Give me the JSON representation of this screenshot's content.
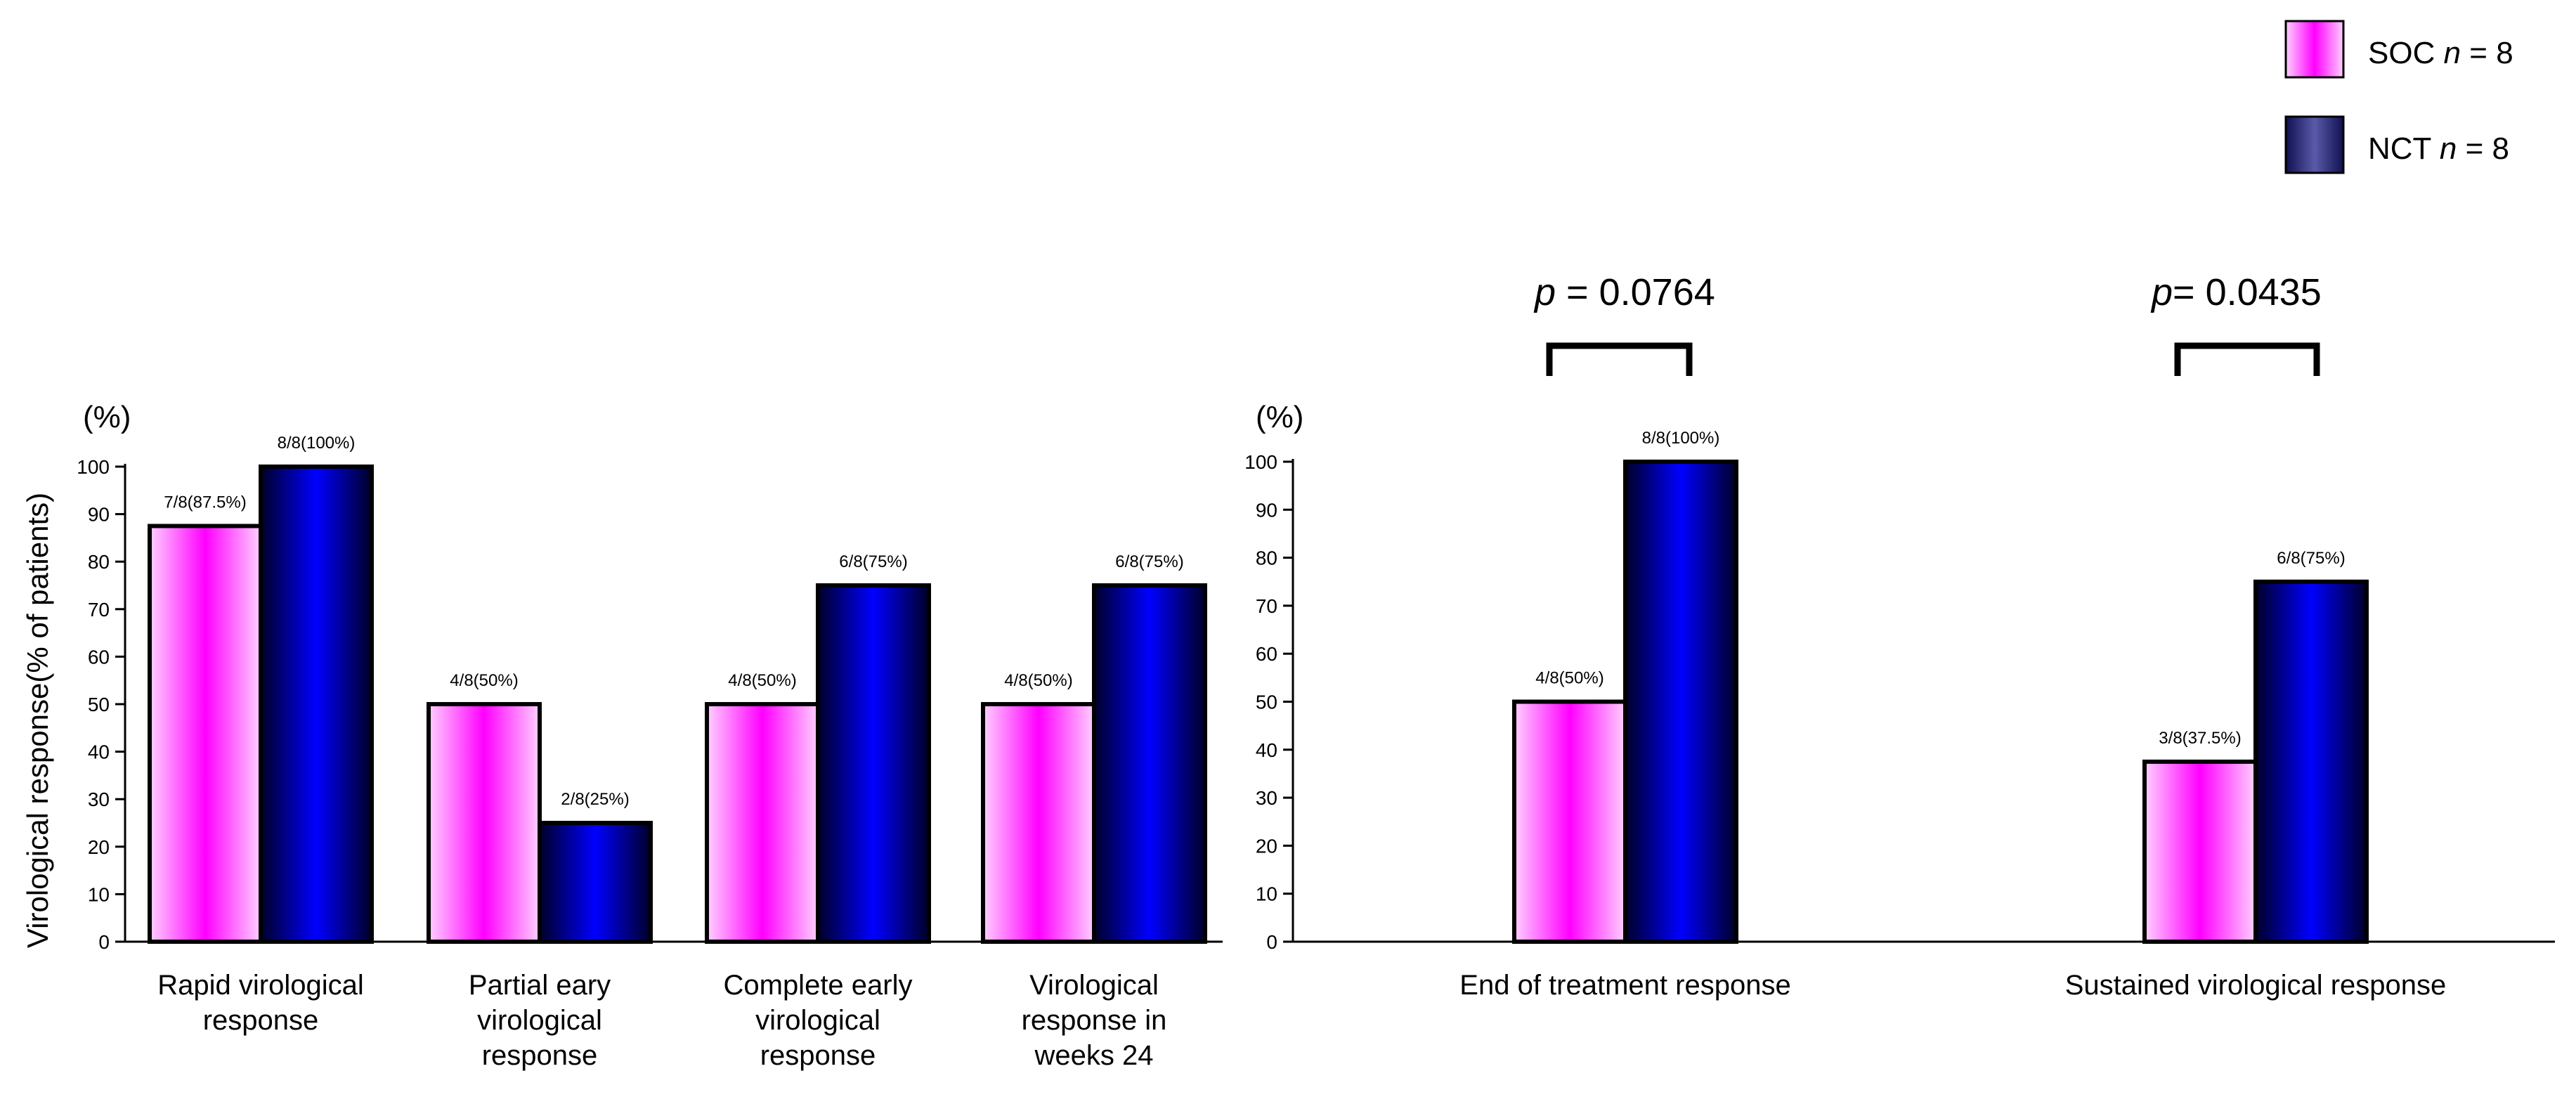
{
  "chart_data": [
    {
      "type": "bar",
      "ylabel": "Virological response(% of patients)",
      "unit_label": "(%)",
      "ylim": [
        0,
        100
      ],
      "yticks": [
        "0",
        "10",
        "20",
        "30",
        "40",
        "50",
        "60",
        "70",
        "80",
        "90",
        "100"
      ],
      "categories": [
        [
          "Rapid virological",
          "response"
        ],
        [
          "Partial eary",
          "virological",
          "response"
        ],
        [
          "Complete early",
          "virological",
          "response"
        ],
        [
          "Virological",
          "response  in",
          "weeks 24"
        ]
      ],
      "series": [
        {
          "name": "SOC n = 8",
          "values": [
            87.5,
            50,
            50,
            50
          ],
          "labels": [
            "7/8(87.5%)",
            "4/8(50%)",
            "4/8(50%)",
            "4/8(50%)"
          ]
        },
        {
          "name": "NCT n = 8",
          "values": [
            100,
            25,
            75,
            75
          ],
          "labels": [
            "8/8(100%)",
            "2/8(25%)",
            "6/8(75%)",
            "6/8(75%)"
          ]
        }
      ]
    },
    {
      "type": "bar",
      "unit_label": "(%)",
      "ylim": [
        0,
        100
      ],
      "yticks": [
        "0",
        "10",
        "20",
        "30",
        "40",
        "50",
        "60",
        "70",
        "80",
        "90",
        "100"
      ],
      "categories": [
        [
          "End of treatment response"
        ],
        [
          "Sustained virological response"
        ]
      ],
      "series": [
        {
          "name": "SOC n = 8",
          "values": [
            50,
            37.5
          ],
          "labels": [
            "4/8(50%)",
            "3/8(37.5%)"
          ]
        },
        {
          "name": "NCT n = 8",
          "values": [
            100,
            75
          ],
          "labels": [
            "8/8(100%)",
            "6/8(75%)"
          ]
        }
      ],
      "annotations": [
        {
          "p_symbol": "p",
          "text": " = 0.0764"
        },
        {
          "p_symbol": "p",
          "text": "= 0.0435"
        }
      ]
    }
  ],
  "legend": {
    "position": "top-right",
    "items": [
      {
        "series": "SOC",
        "italic": "n",
        "suffix": " = 8",
        "color": "#ff00ff"
      },
      {
        "series": "NCT",
        "italic": "n",
        "suffix": " = 8",
        "color": "#0000ff"
      }
    ]
  },
  "colors": {
    "soc_center": "#ff00ff",
    "soc_edge": "#ffd0ff",
    "nct_center": "#0000ff",
    "nct_edge": "#000028",
    "legend_nct_center": "#5a5aaa",
    "legend_nct_edge": "#101050"
  }
}
